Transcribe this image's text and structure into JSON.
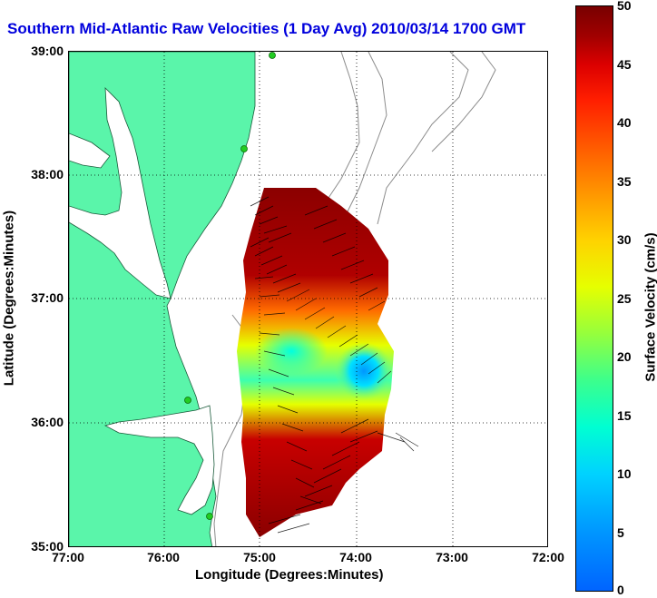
{
  "title": "Southern Mid-Atlantic Raw Velocities (1 Day Avg) 2010/03/14 1700 GMT",
  "x_axis": {
    "title": "Longitude (Degrees:Minutes)",
    "ticks": [
      "77:00",
      "76:00",
      "75:00",
      "74:00",
      "73:00",
      "72:00"
    ]
  },
  "y_axis": {
    "title": "Latitude (Degrees:Minutes)",
    "ticks": [
      "39:00",
      "38:00",
      "37:00",
      "36:00",
      "35:00"
    ]
  },
  "colorbar": {
    "title": "Surface Velocity (cm/s)",
    "ticks": [
      "50",
      "45",
      "40",
      "35",
      "30",
      "25",
      "20",
      "15",
      "10",
      "5",
      "0"
    ],
    "range": [
      0,
      50
    ],
    "colormap": "jet"
  },
  "colors": {
    "land": "#5af5aa",
    "title_text": "#0000dd",
    "bathymetry": "#8c8c8c",
    "site_markers": "#22cc22"
  },
  "map": {
    "extent_lon": [
      -77,
      -72
    ],
    "extent_lat": [
      35,
      39
    ],
    "grid": true
  }
}
